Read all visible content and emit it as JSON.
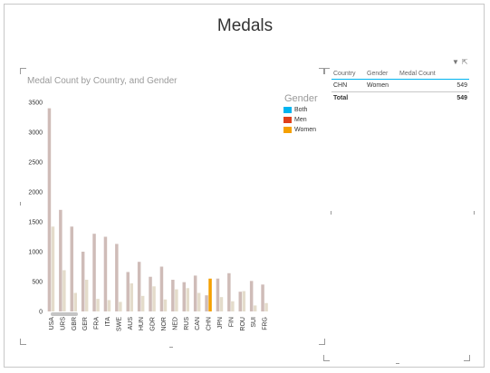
{
  "page": {
    "title": "Medals"
  },
  "chart": {
    "title": "Medal Count by Country, and Gender",
    "legend": {
      "title": "Gender",
      "items": [
        {
          "label": "Both",
          "color": "#00b4f0"
        },
        {
          "label": "Men",
          "color": "#e0401a"
        },
        {
          "label": "Women",
          "color": "#f5a000"
        }
      ]
    }
  },
  "chart_data": {
    "type": "bar",
    "title": "Medal Count by Country, and Gender",
    "xlabel": "",
    "ylabel": "",
    "ylim": [
      0,
      3500
    ],
    "yticks": [
      0,
      500,
      1000,
      1500,
      2000,
      2500,
      3000,
      3500
    ],
    "categories": [
      "USA",
      "URS",
      "GBR",
      "GER",
      "FRA",
      "ITA",
      "SWE",
      "AUS",
      "HUN",
      "GDR",
      "NOR",
      "NED",
      "RUS",
      "CAN",
      "CHN",
      "JPN",
      "FIN",
      "ROU",
      "SUI",
      "FRG"
    ],
    "series": [
      {
        "name": "Men",
        "values": [
          3400,
          1700,
          1420,
          1000,
          1300,
          1250,
          1130,
          660,
          830,
          580,
          750,
          530,
          490,
          600,
          270,
          550,
          640,
          330,
          510,
          450
        ]
      },
      {
        "name": "Women",
        "values": [
          1420,
          690,
          310,
          530,
          210,
          190,
          160,
          470,
          260,
          420,
          200,
          370,
          390,
          310,
          549,
          240,
          170,
          340,
          100,
          140
        ]
      }
    ],
    "highlight": {
      "category": "CHN",
      "series": "Women"
    },
    "grid": false,
    "legend_position": "right"
  },
  "table": {
    "headers": [
      "Country",
      "Gender",
      "Medal Count"
    ],
    "rows": [
      [
        "CHN",
        "Women",
        "549"
      ]
    ],
    "total": {
      "label": "Total",
      "value": "549"
    }
  },
  "toolbar": {
    "filter_icon": "filter-icon",
    "popout_icon": "popout-icon"
  }
}
